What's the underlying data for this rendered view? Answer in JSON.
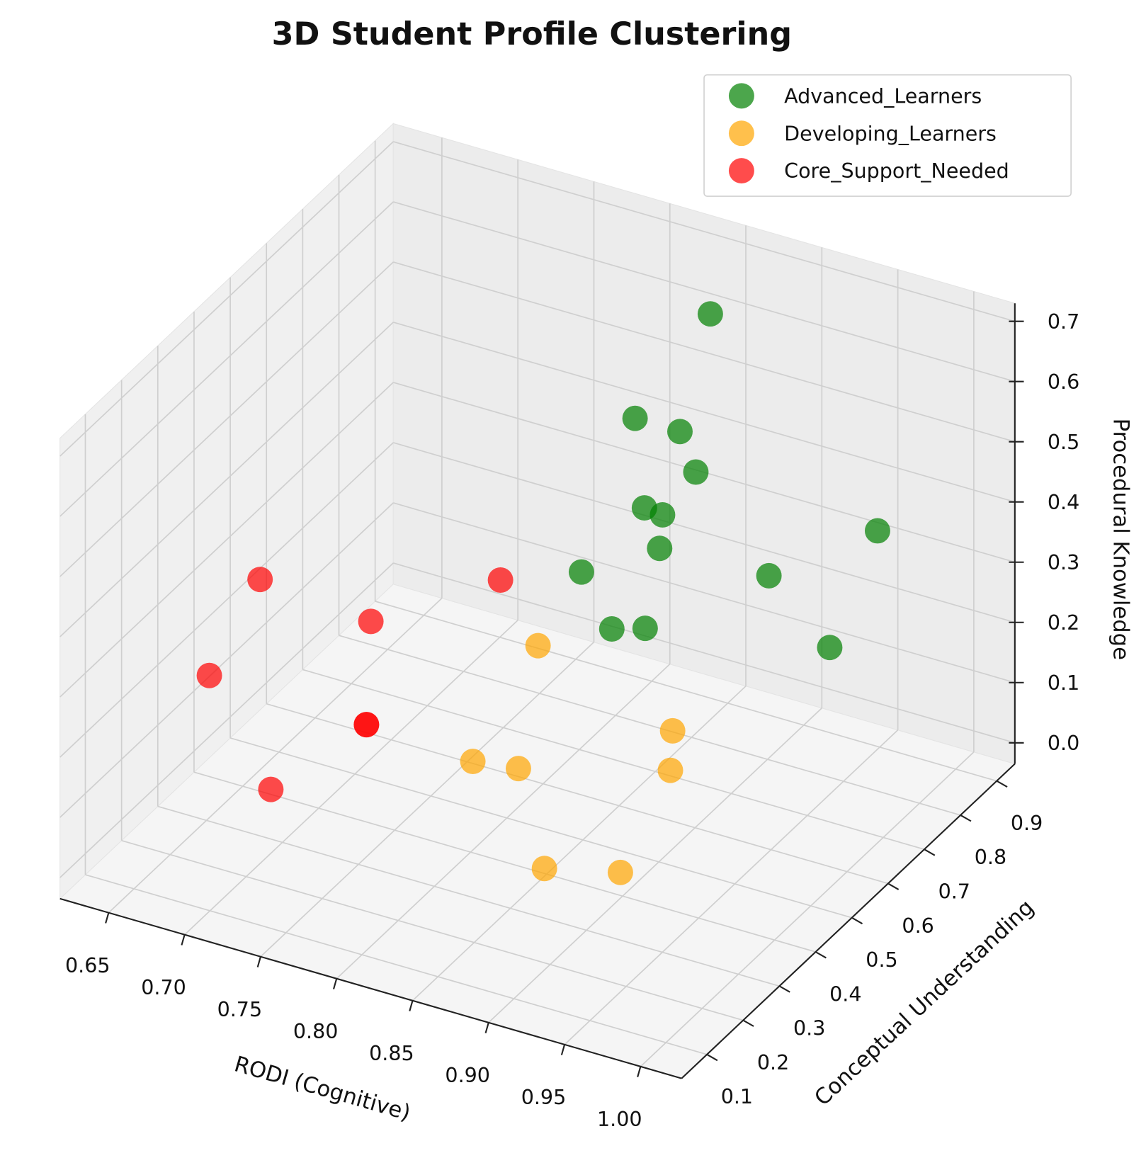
{
  "chart_data": {
    "type": "scatter3d",
    "title": "3D Student Profile Clustering",
    "x_label": "RODI (Cognitive)",
    "y_label": "Conceptual Understanding",
    "z_label": "Procedural Knowledge",
    "xlim": [
      0.618,
      1.027
    ],
    "ylim": [
      0.03,
      0.95
    ],
    "zlim": [
      -0.035,
      0.73
    ],
    "xticks": [
      0.65,
      {
        "value": 0.7,
        "label": "0.70"
      },
      0.75,
      {
        "value": 0.8,
        "label": "0.80"
      },
      0.85,
      {
        "value": 0.9,
        "label": "0.90"
      },
      0.95,
      {
        "value": 1,
        "label": "1.00"
      }
    ],
    "yticks": [
      0.1,
      0.2,
      0.3,
      0.4,
      0.5,
      0.6,
      0.7,
      0.8,
      0.9
    ],
    "zticks": [
      {
        "value": 0,
        "label": "0.0"
      },
      0.1,
      0.2,
      0.3,
      0.4,
      0.5,
      0.6,
      0.7
    ],
    "grid": true,
    "legend": "upper right",
    "series": [
      {
        "name": "Advanced_Learners",
        "color": "green",
        "x": [
          0.86,
          0.82,
          0.84,
          0.86,
          0.85,
          0.85,
          0.86,
          0.83,
          0.92,
          0.97,
          0.85,
          0.86,
          0.96
        ],
        "y": [
          0.81,
          0.77,
          0.81,
          0.77,
          0.67,
          0.72,
          0.67,
          0.58,
          0.72,
          0.81,
          0.58,
          0.63,
          0.72
        ],
        "z": [
          0.67,
          0.49,
          0.46,
          0.43,
          0.42,
          0.38,
          0.36,
          0.35,
          0.33,
          0.39,
          0.27,
          0.25,
          0.24
        ]
      },
      {
        "name": "Developing_Learners",
        "color": "orange",
        "x": [
          0.78,
          0.89,
          0.78,
          0.81,
          0.91,
          0.87,
          0.92
        ],
        "y": [
          0.67,
          0.58,
          0.49,
          0.49,
          0.49,
          0.31,
          0.31
        ],
        "z": [
          0.14,
          0.13,
          0.05,
          0.06,
          0.13,
          0.04,
          0.07
        ]
      },
      {
        "name": "Core_Support_Needed",
        "color": "red",
        "x": [
          0.64,
          0.71,
          0.67,
          0.64,
          0.71,
          0.71,
          0.69
        ],
        "y": [
          0.49,
          0.86,
          0.67,
          0.35,
          0.49,
          0.49,
          0.31
        ],
        "z": [
          0.25,
          0.09,
          0.1,
          0.17,
          0.06,
          0.06,
          0.04
        ]
      }
    ]
  }
}
